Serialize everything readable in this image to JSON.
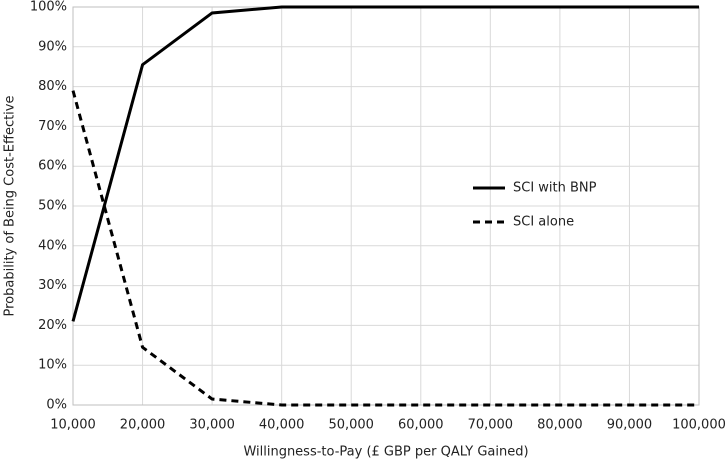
{
  "chart_data": {
    "type": "line",
    "x_label": "Willingness-to-Pay (£ GBP per QALY Gained)",
    "y_label": "Probability of Being Cost-Effective",
    "x": [
      10000,
      20000,
      30000,
      40000,
      50000,
      60000,
      70000,
      80000,
      90000,
      100000
    ],
    "series": [
      {
        "name": "SCI with BNP",
        "color": "#000000",
        "style": "solid",
        "values": [
          21,
          85.5,
          98.5,
          100,
          100,
          100,
          100,
          100,
          100,
          100
        ]
      },
      {
        "name": "SCI alone",
        "color": "#000000",
        "style": "dashed",
        "values": [
          79,
          14.5,
          1.5,
          0,
          0,
          0,
          0,
          0,
          0,
          0
        ]
      }
    ],
    "xlim": [
      10000,
      100000
    ],
    "xticks": [
      {
        "value": 10000,
        "label": "10,000"
      },
      {
        "value": 20000,
        "label": "20,000"
      },
      {
        "value": 30000,
        "label": "30,000"
      },
      {
        "value": 40000,
        "label": "40,000"
      },
      {
        "value": 50000,
        "label": "50,000"
      },
      {
        "value": 60000,
        "label": "60,000"
      },
      {
        "value": 70000,
        "label": "70,000"
      },
      {
        "value": 80000,
        "label": "80,000"
      },
      {
        "value": 90000,
        "label": "90,000"
      },
      {
        "value": 100000,
        "label": "100,000"
      }
    ],
    "ylim": [
      0,
      100
    ],
    "yticks": [
      {
        "value": 0,
        "label": "0%"
      },
      {
        "value": 10,
        "label": "10%"
      },
      {
        "value": 20,
        "label": "20%"
      },
      {
        "value": 30,
        "label": "30%"
      },
      {
        "value": 40,
        "label": "40%"
      },
      {
        "value": 50,
        "label": "50%"
      },
      {
        "value": 60,
        "label": "60%"
      },
      {
        "value": 70,
        "label": "70%"
      },
      {
        "value": 80,
        "label": "80%"
      },
      {
        "value": 90,
        "label": "90%"
      },
      {
        "value": 100,
        "label": "100%"
      }
    ],
    "grid": true,
    "legend": "right"
  }
}
